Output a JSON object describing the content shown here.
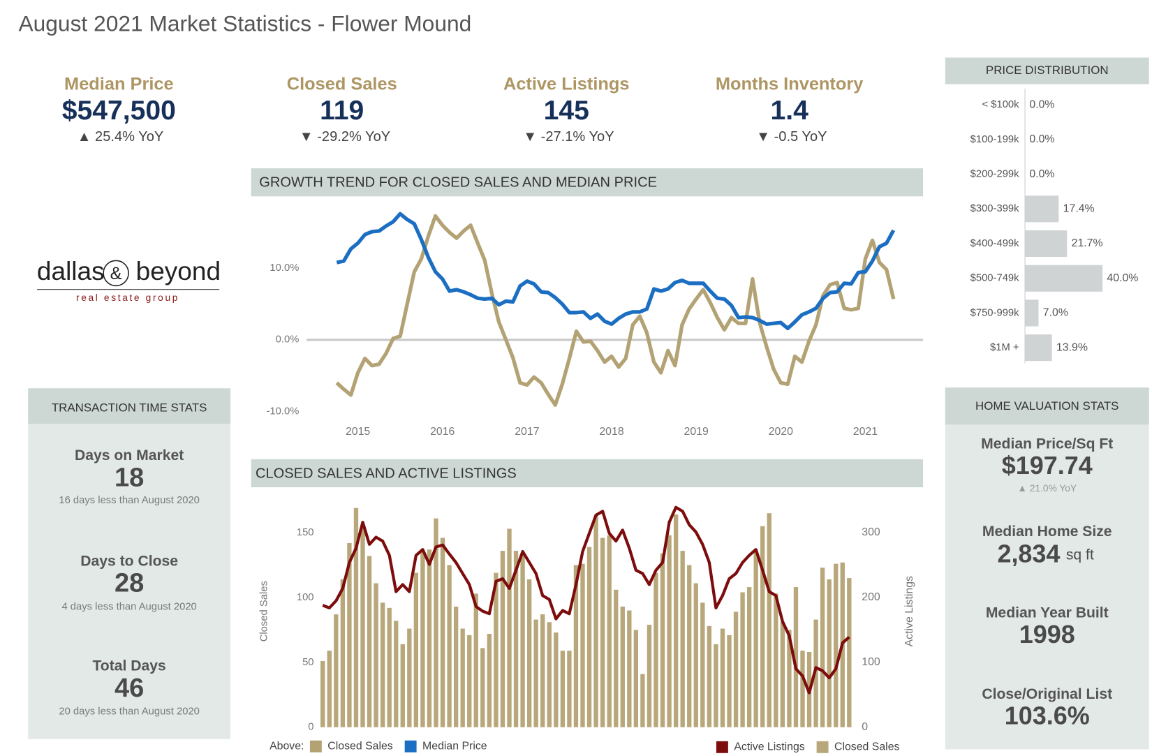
{
  "title": "August 2021 Market Statistics - Flower Mound",
  "kpis": [
    {
      "label": "Median Price",
      "value": "$547,500",
      "change": "▲ 25.4% YoY"
    },
    {
      "label": "Closed Sales",
      "value": "119",
      "change": "▼ -29.2% YoY"
    },
    {
      "label": "Active Listings",
      "value": "145",
      "change": "▼ -27.1% YoY"
    },
    {
      "label": "Months Inventory",
      "value": "1.4",
      "change": "▼ -0.5 YoY"
    }
  ],
  "logo": {
    "name_left": "dallas",
    "ampersand": "&",
    "name_right": "beyond",
    "tagline": "real estate group"
  },
  "transaction": {
    "title": "TRANSACTION TIME STATS",
    "items": [
      {
        "label": "Days on Market",
        "value": "18",
        "note": "16 days less than August 2020"
      },
      {
        "label": "Days to Close",
        "value": "28",
        "note": "4 days less than August 2020"
      },
      {
        "label": "Total Days",
        "value": "46",
        "note": "20 days less than August 2020"
      }
    ]
  },
  "home_valuation": {
    "title": "HOME VALUATION STATS",
    "items": [
      {
        "label": "Median Price/Sq Ft",
        "value": "$197.74",
        "note": "▲ 21.0% YoY"
      },
      {
        "label": "Median Home Size",
        "value": "2,834",
        "unit": "sq ft"
      },
      {
        "label": "Median Year Built",
        "value": "1998"
      },
      {
        "label": "Close/Original List",
        "value": "103.6%"
      }
    ]
  },
  "chart_data": [
    {
      "type": "bar",
      "horizontal": true,
      "title": "PRICE DISTRIBUTION",
      "categories": [
        "< $100k",
        "$100-199k",
        "$200-299k",
        "$300-399k",
        "$400-499k",
        "$500-749k",
        "$750-999k",
        "$1M +"
      ],
      "values": [
        0,
        0,
        0,
        17.4,
        21.7,
        40,
        7,
        13.9
      ],
      "value_labels": [
        "0.0%",
        "0.0%",
        "0.0%",
        "17.4%",
        "21.7%",
        "40.0%",
        "7.0%",
        "13.9%"
      ],
      "color": "#cfd3d3",
      "xlim": [
        0,
        40
      ]
    },
    {
      "type": "line",
      "title": "GROWTH TREND FOR CLOSED SALES AND MEDIAN PRICE",
      "categories": [
        null,
        null,
        null,
        "2015",
        null,
        null,
        null,
        null,
        null,
        null,
        null,
        null,
        null,
        null,
        null,
        "2016",
        null,
        null,
        null,
        null,
        null,
        null,
        null,
        null,
        null,
        null,
        null,
        "2017",
        null,
        null,
        null,
        null,
        null,
        null,
        null,
        null,
        null,
        null,
        null,
        "2018",
        null,
        null,
        null,
        null,
        null,
        null,
        null,
        null,
        null,
        null,
        null,
        "2019",
        null,
        null,
        null,
        null,
        null,
        null,
        null,
        null,
        null,
        null,
        null,
        "2020",
        null,
        null,
        null,
        null,
        null,
        null,
        null,
        null,
        null,
        null,
        null,
        "2021",
        null,
        null,
        null,
        null
      ],
      "series": [
        {
          "name": "Closed Sales",
          "color": "#b3a273",
          "values": [
            -6.0,
            -6.9,
            -7.7,
            -4.6,
            -2.6,
            -3.6,
            -3.4,
            -1.9,
            0.2,
            0.5,
            5.0,
            9.5,
            11.3,
            14.5,
            17.3,
            16.0,
            15.0,
            14.2,
            15.2,
            16.0,
            13.5,
            11.1,
            6.5,
            2.5,
            0.0,
            -2.5,
            -6.0,
            -6.3,
            -5.2,
            -6.0,
            -7.6,
            -9.1,
            -6.2,
            -2.6,
            1.2,
            -0.3,
            -0.2,
            -1.5,
            -3.1,
            -2.3,
            -3.8,
            -2.6,
            2.1,
            3.3,
            1.0,
            -3.1,
            -4.6,
            -1.5,
            -3.6,
            2.1,
            4.3,
            5.7,
            7.0,
            5.2,
            3.1,
            1.4,
            3.1,
            2.3,
            2.3,
            8.5,
            2.4,
            -1.0,
            -4.1,
            -6.0,
            -6.2,
            -2.3,
            -3.1,
            -0.2,
            2.1,
            6.2,
            7.7,
            8.0,
            4.4,
            4.2,
            4.4,
            11.3,
            13.9,
            10.8,
            9.8,
            5.7
          ]
        },
        {
          "name": "Median Price",
          "color": "#1b6ec2",
          "values": [
            10.8,
            11.0,
            12.7,
            13.5,
            14.7,
            15.1,
            15.2,
            15.9,
            16.5,
            17.6,
            16.8,
            16.2,
            14.0,
            11.5,
            9.5,
            8.5,
            6.8,
            7.0,
            6.7,
            6.3,
            5.8,
            5.7,
            5.8,
            4.9,
            5.4,
            5.3,
            7.5,
            8.2,
            7.8,
            6.7,
            6.6,
            5.9,
            5.0,
            3.8,
            3.8,
            3.9,
            3.0,
            3.6,
            2.6,
            2.2,
            3.0,
            3.6,
            3.9,
            3.9,
            4.3,
            7.1,
            6.8,
            7.1,
            8.0,
            8.3,
            7.9,
            7.9,
            7.9,
            6.8,
            5.8,
            5.7,
            4.8,
            3.1,
            3.2,
            3.1,
            2.7,
            2.2,
            2.3,
            2.4,
            1.6,
            2.5,
            3.5,
            3.9,
            4.4,
            5.8,
            6.6,
            6.7,
            7.9,
            7.8,
            9.4,
            9.5,
            11.0,
            13.0,
            13.5,
            15.3
          ]
        }
      ],
      "ylim": [
        -11,
        19
      ],
      "yticks": [
        {
          "value": -10,
          "label": "-10.0%"
        },
        {
          "value": 0,
          "label": "0.0%"
        },
        {
          "value": 10,
          "label": "10.0%"
        }
      ],
      "zero_line": true,
      "legend": "bottom-left",
      "legend_title": "Above:"
    },
    {
      "type": "bar",
      "title": "CLOSED SALES AND ACTIVE LISTINGS",
      "y_label": "Closed Sales",
      "y2_label": "Active Listings",
      "ylim": [
        0,
        185
      ],
      "yticks": [
        0,
        50,
        100,
        150
      ],
      "y2lim": [
        0,
        370
      ],
      "y2ticks": [
        0,
        100,
        200,
        300
      ],
      "legend": "bottom-right",
      "series": [
        {
          "name": "Active Listings",
          "type": "line",
          "axis": "y2",
          "color": "#7d0c0c",
          "values": [
            188,
            184,
            195,
            214,
            254,
            276,
            316,
            282,
            293,
            287,
            265,
            209,
            220,
            209,
            265,
            274,
            251,
            278,
            281,
            267,
            254,
            237,
            220,
            186,
            179,
            175,
            225,
            229,
            214,
            242,
            271,
            254,
            237,
            203,
            197,
            167,
            180,
            175,
            220,
            271,
            299,
            327,
            333,
            299,
            287,
            304,
            276,
            242,
            237,
            220,
            242,
            254,
            316,
            339,
            333,
            312,
            301,
            282,
            254,
            184,
            203,
            229,
            237,
            254,
            265,
            274,
            242,
            209,
            203,
            163,
            141,
            90,
            79,
            53,
            92,
            87,
            76,
            90,
            130,
            139
          ]
        },
        {
          "name": "Closed Sales",
          "type": "bar",
          "color": "#b8a77a",
          "values": [
            51,
            59,
            87,
            114,
            142,
            169,
            155,
            132,
            111,
            96,
            92,
            82,
            64,
            76,
            119,
            136,
            137,
            161,
            146,
            125,
            93,
            76,
            71,
            103,
            61,
            72,
            119,
            136,
            153,
            136,
            133,
            114,
            83,
            87,
            81,
            73,
            59,
            59,
            125,
            126,
            139,
            163,
            146,
            148,
            106,
            93,
            90,
            75,
            41,
            79,
            119,
            134,
            148,
            164,
            136,
            125,
            111,
            96,
            78,
            64,
            76,
            71,
            89,
            104,
            108,
            135,
            155,
            165,
            103,
            81,
            75,
            108,
            59,
            58,
            83,
            123,
            114,
            126,
            127,
            115
          ]
        }
      ]
    }
  ]
}
